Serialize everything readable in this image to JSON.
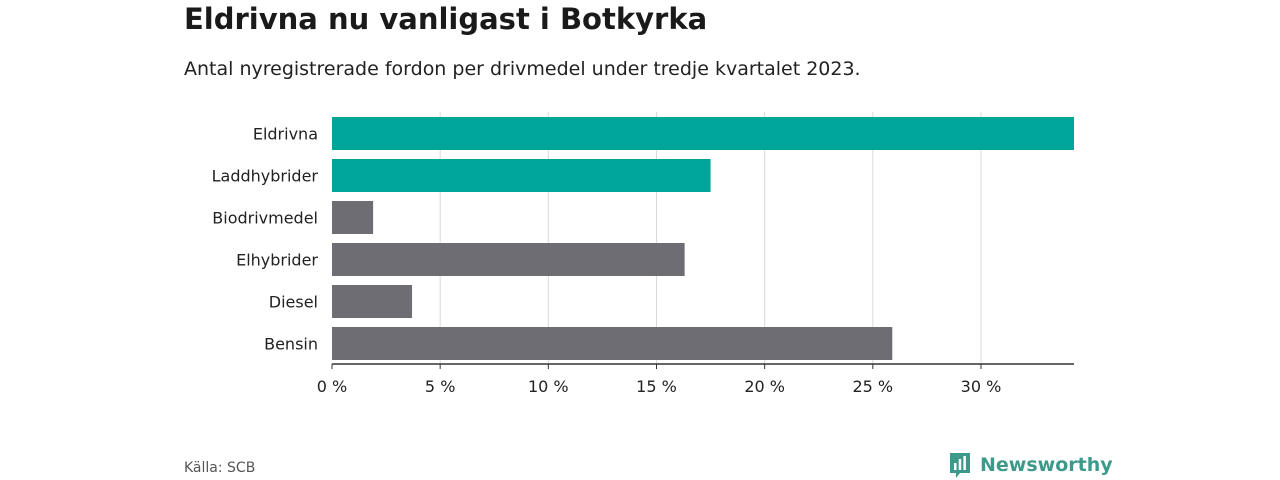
{
  "header": {
    "title": "Eldrivna nu vanligast i Botkyrka",
    "subtitle": "Antal nyregistrerade fordon per drivmedel under tredje kvartalet 2023."
  },
  "footer": {
    "source": "Källa: SCB",
    "brand": "Newsworthy"
  },
  "colors": {
    "highlight": "#00a599",
    "default": "#6e6d74",
    "grid": "#d9d9d9",
    "axis": "#333333",
    "brand": "#3d9a8b"
  },
  "chart_data": {
    "type": "bar",
    "orientation": "horizontal",
    "categories": [
      "Eldrivna",
      "Laddhybrider",
      "Biodrivmedel",
      "Elhybrider",
      "Diesel",
      "Bensin"
    ],
    "values": [
      34.3,
      17.5,
      1.9,
      16.3,
      3.7,
      25.9
    ],
    "highlighted": [
      true,
      true,
      false,
      false,
      false,
      false
    ],
    "xlim": [
      0,
      34.3
    ],
    "x_ticks": [
      0,
      5,
      10,
      15,
      20,
      25,
      30
    ],
    "x_tick_labels": [
      "0 %",
      "5 %",
      "10 %",
      "15 %",
      "20 %",
      "25 %",
      "30 %"
    ],
    "grid": true
  }
}
